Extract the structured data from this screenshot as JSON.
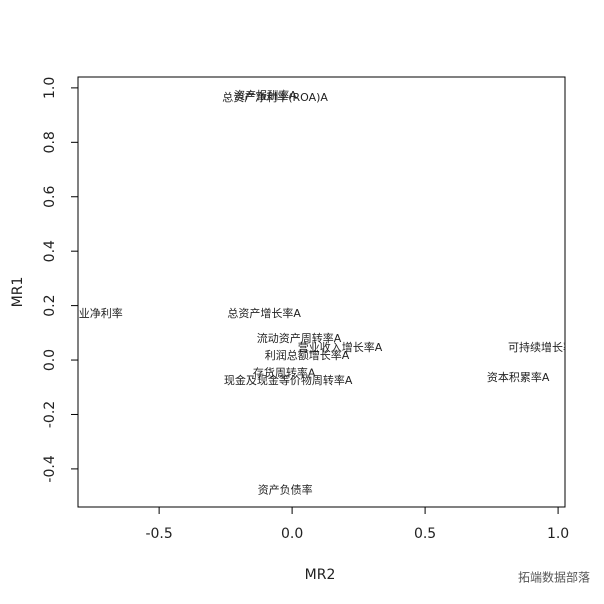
{
  "chart_data": {
    "type": "scatter",
    "xlabel": "MR2",
    "ylabel": "MR1",
    "labels": [
      "总资产净利率(ROA)A",
      "资产报酬率A",
      "营业净利率",
      "总资产增长率A",
      "流动资产周转率A",
      "营业收入增长率A",
      "利润总额增长率A",
      "存货周转率A",
      "现金及现金等价物周转率A",
      "可持续增长率A",
      "资本积累率A",
      "资产负债率"
    ],
    "x": [
      -0.064,
      -0.1,
      -0.74,
      -0.105,
      0.026,
      0.18,
      0.056,
      -0.03,
      -0.015,
      0.95,
      0.85,
      -0.026
    ],
    "y": [
      0.963,
      0.97,
      0.17,
      0.17,
      0.077,
      0.044,
      0.015,
      -0.05,
      -0.077,
      0.044,
      -0.066,
      -0.48
    ],
    "xlim": [
      -0.805,
      1.026
    ],
    "ylim": [
      -0.54,
      1.04
    ],
    "xticks": [
      -0.5,
      {
        "value": 0,
        "label": "0.0"
      },
      0.5,
      {
        "value": 1,
        "label": "1.0"
      }
    ],
    "yticks": [
      -0.4,
      -0.2,
      {
        "value": 0,
        "label": "0.0"
      },
      0.2,
      0.4,
      0.6,
      0.8,
      {
        "value": 1,
        "label": "1.0"
      }
    ],
    "watermark": "拓端数据部落"
  }
}
